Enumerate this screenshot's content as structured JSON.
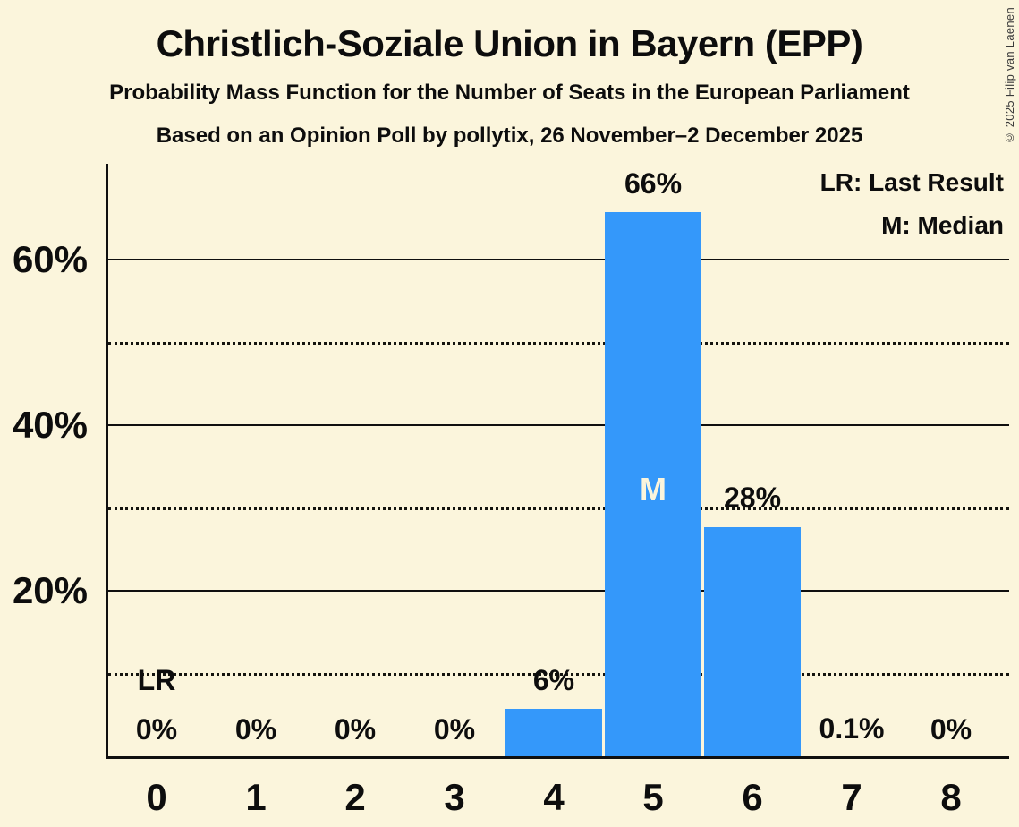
{
  "header": {
    "title": "Christlich-Soziale Union in Bayern (EPP)",
    "subtitle": "Probability Mass Function for the Number of Seats in the European Parliament",
    "source_line": "Based on an Opinion Poll by pollytix, 26 November–2 December 2025"
  },
  "copyright": "© 2025 Filip van Laenen",
  "legend": {
    "last_result": "LR: Last Result",
    "median": "M: Median"
  },
  "colors": {
    "background": "#FBF5DC",
    "bar": "#3498FA",
    "text": "#0D0D0D",
    "axis": "#0F0F0F"
  },
  "chart_data": {
    "type": "bar",
    "title": "Christlich-Soziale Union in Bayern (EPP)",
    "categories": [
      "0",
      "1",
      "2",
      "3",
      "4",
      "5",
      "6",
      "7",
      "8"
    ],
    "values": [
      0,
      0,
      0,
      0,
      6,
      66,
      28,
      0.1,
      0
    ],
    "bar_labels": [
      "0%",
      "0%",
      "0%",
      "0%",
      "6%",
      "66%",
      "28%",
      "0.1%",
      "0%"
    ],
    "y_axis": {
      "solid_tick_values": [
        20,
        40,
        60
      ],
      "solid_tick_labels": [
        "20%",
        "40%",
        "60%"
      ],
      "dotted_gridline_values": [
        10,
        30,
        50
      ],
      "ylim": [
        0,
        72
      ]
    },
    "annotations": {
      "median_marker": "M",
      "median_category": "5",
      "last_result_marker": "LR",
      "last_result_category": "0"
    },
    "legend_position": "top-right",
    "grid": "horizontal-only"
  }
}
